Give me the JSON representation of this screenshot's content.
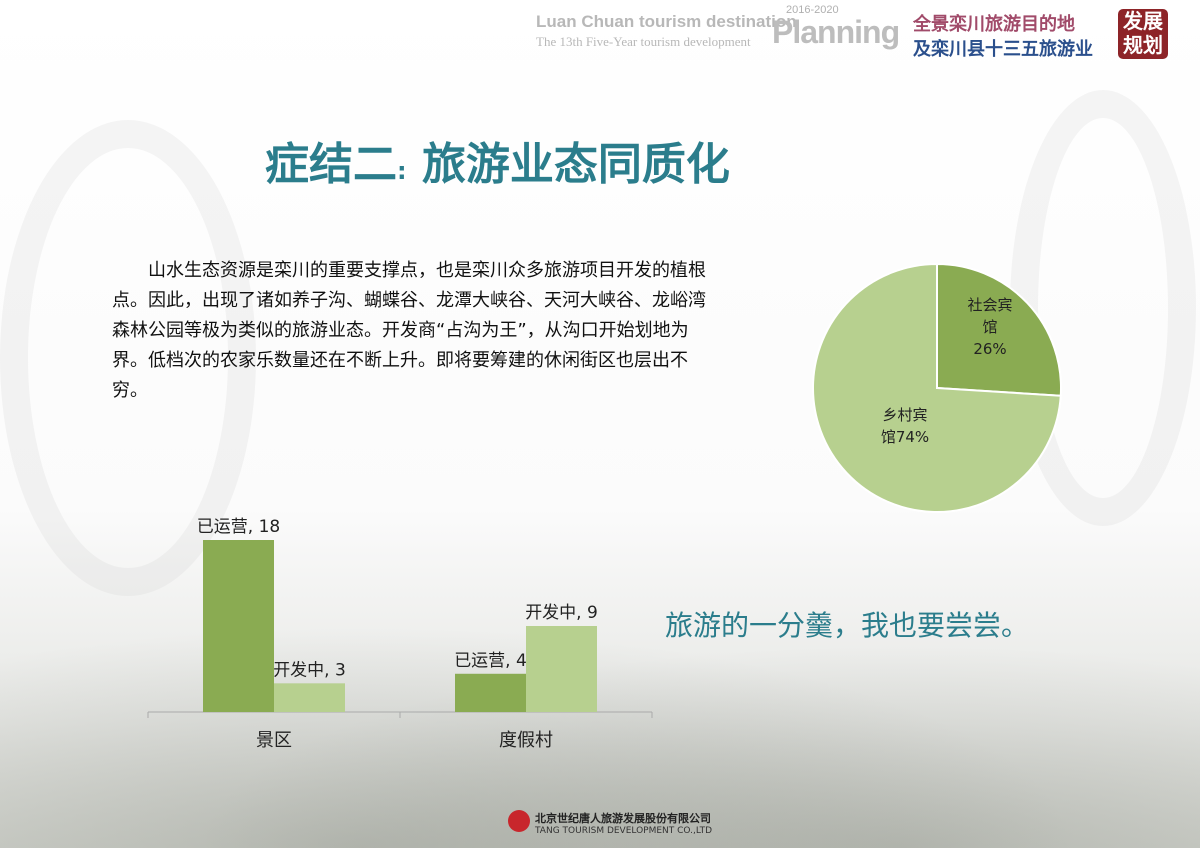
{
  "header": {
    "en_line1": "Luan Chuan tourism destination",
    "en_line2": "The 13th Five-Year tourism development",
    "years": "2016-2020",
    "planning": "Planning",
    "cn_line1": "全景栾川旅游目的地",
    "cn_line2": "及栾川县十三五旅游业",
    "badge_line1": "发展",
    "badge_line2": "规划"
  },
  "title": {
    "part1": "症结二",
    "colon": ":",
    "part2": "旅游业态同质化"
  },
  "paragraph": "山水生态资源是栾川的重要支撑点，也是栾川众多旅游项目开发的植根点。因此，出现了诸如养子沟、蝴蝶谷、龙潭大峡谷、天河大峡谷、龙峪湾森林公园等极为类似的旅游业态。开发商“占沟为王”，从沟口开始划地为界。低档次的农家乐数量还在不断上升。即将要筹建的休闲街区也层出不穷。",
  "slogan": "旅游的一分羹，我也要尝尝。",
  "footer": {
    "company_cn": "北京世纪唐人旅游发展股份有限公司",
    "company_en": "TANG TOURISM DEVELOPMENT CO.,LTD"
  },
  "colors": {
    "accent": "#2b7d8c",
    "dark_green": "#8aab52",
    "light_green": "#b7d08f"
  },
  "chart_data": [
    {
      "type": "pie",
      "slices": [
        {
          "label": "社会宾馆",
          "value": 26,
          "data_label": "26%",
          "color": "#8aab52"
        },
        {
          "label": "乡村宾馆",
          "value": 74,
          "data_label": "74%",
          "color": "#b7d08f"
        }
      ],
      "legend": "none"
    },
    {
      "type": "bar",
      "categories": [
        "景区",
        "度假村"
      ],
      "series": [
        {
          "name": "已运营",
          "values": [
            18,
            4
          ],
          "color": "#8aab52"
        },
        {
          "name": "开发中",
          "values": [
            3,
            9
          ],
          "color": "#b7d08f"
        }
      ],
      "ylim": [
        0,
        18
      ],
      "grid": false,
      "legend": "none"
    }
  ]
}
